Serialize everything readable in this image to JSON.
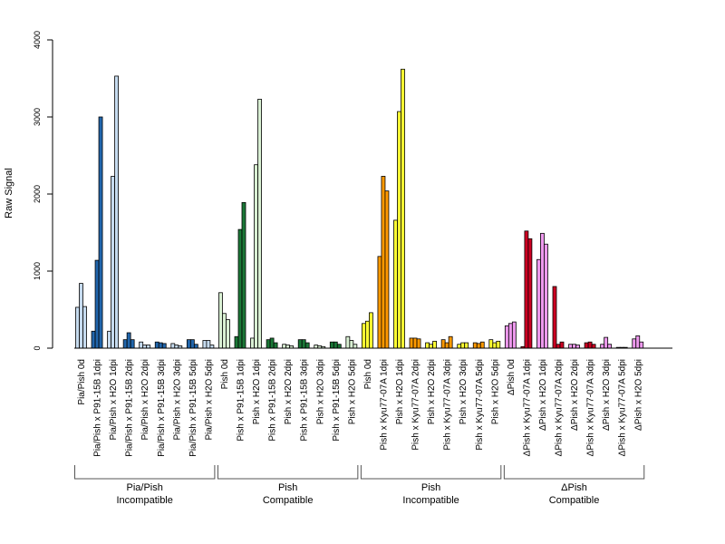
{
  "chart_data": {
    "type": "bar",
    "ylabel": "Raw Signal",
    "ylim": [
      0,
      4000
    ],
    "yticks": [
      0,
      1000,
      2000,
      3000,
      4000
    ],
    "categories": [
      "Pia/Pish 0d",
      "Pia/Pish x P91-15B 1dpi",
      "Pia/Pish x H2O 1dpi",
      "Pia/Pish x P91-15B 2dpi",
      "Pia/Pish x H2O 2dpi",
      "Pia/Pish x P91-15B 3dpi",
      "Pia/Pish x H2O 3dpi",
      "Pia/Pish x P91-15B 5dpi",
      "Pia/Pish x H2O 5dpi",
      "Pish 0d",
      "Pish x P91-15B 1dpi",
      "Pish x H2O 1dpi",
      "Pish x P91-15B 2dpi",
      "Pish x H2O 2dpi",
      "Pish x P91-15B 3dpi",
      "Pish x H2O 3dpi",
      "Pish x P91-15B 5dpi",
      "Pish x H2O 5dpi",
      "Pish 0d",
      "Pish x Kyu77-07A 1dpi",
      "Pish x H2O 1dpi",
      "Pish x Kyu77-07A 2dpi",
      "Pish x H2O 2dpi",
      "Pish x Kyu77-07A 3dpi",
      "Pish x H2O 3dpi",
      "Pish x Kyu77-07A 5dpi",
      "Pish x H2O 5dpi",
      "ΔPish 0d",
      "ΔPish x Kyu77-07A 1dpi",
      "ΔPish x H2O 1dpi",
      "ΔPish x Kyu77-07A 2dpi",
      "ΔPish x H2O 2dpi",
      "ΔPish x Kyu77-07A 3dpi",
      "ΔPish x H2O 3dpi",
      "ΔPish x Kyu77-07A 5dpi",
      "ΔPish x H2O 5dpi"
    ],
    "replicate_values": [
      [
        530,
        840,
        540
      ],
      [
        220,
        1140,
        3000
      ],
      [
        220,
        2230,
        3530
      ],
      [
        110,
        200,
        110
      ],
      [
        80,
        40,
        40
      ],
      [
        80,
        70,
        60
      ],
      [
        60,
        40,
        30
      ],
      [
        110,
        110,
        50
      ],
      [
        100,
        100,
        40
      ],
      [
        720,
        450,
        370
      ],
      [
        150,
        1540,
        1890
      ],
      [
        130,
        2380,
        3230
      ],
      [
        110,
        130,
        70
      ],
      [
        50,
        40,
        30
      ],
      [
        110,
        110,
        70
      ],
      [
        40,
        30,
        20
      ],
      [
        80,
        80,
        50
      ],
      [
        150,
        100,
        50
      ],
      [
        320,
        350,
        460
      ],
      [
        1190,
        2230,
        2040
      ],
      [
        1660,
        3070,
        3620
      ],
      [
        130,
        130,
        120
      ],
      [
        70,
        50,
        90
      ],
      [
        110,
        70,
        150
      ],
      [
        50,
        70,
        70
      ],
      [
        70,
        60,
        80
      ],
      [
        110,
        70,
        90
      ],
      [
        290,
        320,
        340
      ],
      [
        20,
        1520,
        1420
      ],
      [
        1150,
        1490,
        1350
      ],
      [
        800,
        50,
        80
      ],
      [
        50,
        50,
        40
      ],
      [
        70,
        80,
        50
      ],
      [
        50,
        140,
        50
      ],
      [
        10,
        10,
        10
      ],
      [
        120,
        160,
        80
      ]
    ],
    "bar_colors": [
      "#c6dbef",
      "#2166ac",
      "#c6dbef",
      "#2166ac",
      "#c6dbef",
      "#2166ac",
      "#c6dbef",
      "#2166ac",
      "#c6dbef",
      "#d9f0d3",
      "#1b7837",
      "#d9f0d3",
      "#1b7837",
      "#d9f0d3",
      "#1b7837",
      "#d9f0d3",
      "#1b7837",
      "#d9f0d3",
      "#ffff33",
      "#ff9900",
      "#ffff33",
      "#ff9900",
      "#ffff33",
      "#ff9900",
      "#ffff33",
      "#ff9900",
      "#ffff33",
      "#ee99ee",
      "#cc0022",
      "#ee99ee",
      "#cc0022",
      "#ee99ee",
      "#cc0022",
      "#ee99ee",
      "#cc0022",
      "#ee99ee"
    ],
    "groups": [
      {
        "line1": "Pia/Pish",
        "line2": "Incompatible",
        "count": 9
      },
      {
        "line1": "Pish",
        "line2": "Compatible",
        "count": 9
      },
      {
        "line1": "Pish",
        "line2": "Incompatible",
        "count": 9
      },
      {
        "line1": "ΔPish",
        "line2": "Compatible",
        "count": 9
      }
    ]
  }
}
